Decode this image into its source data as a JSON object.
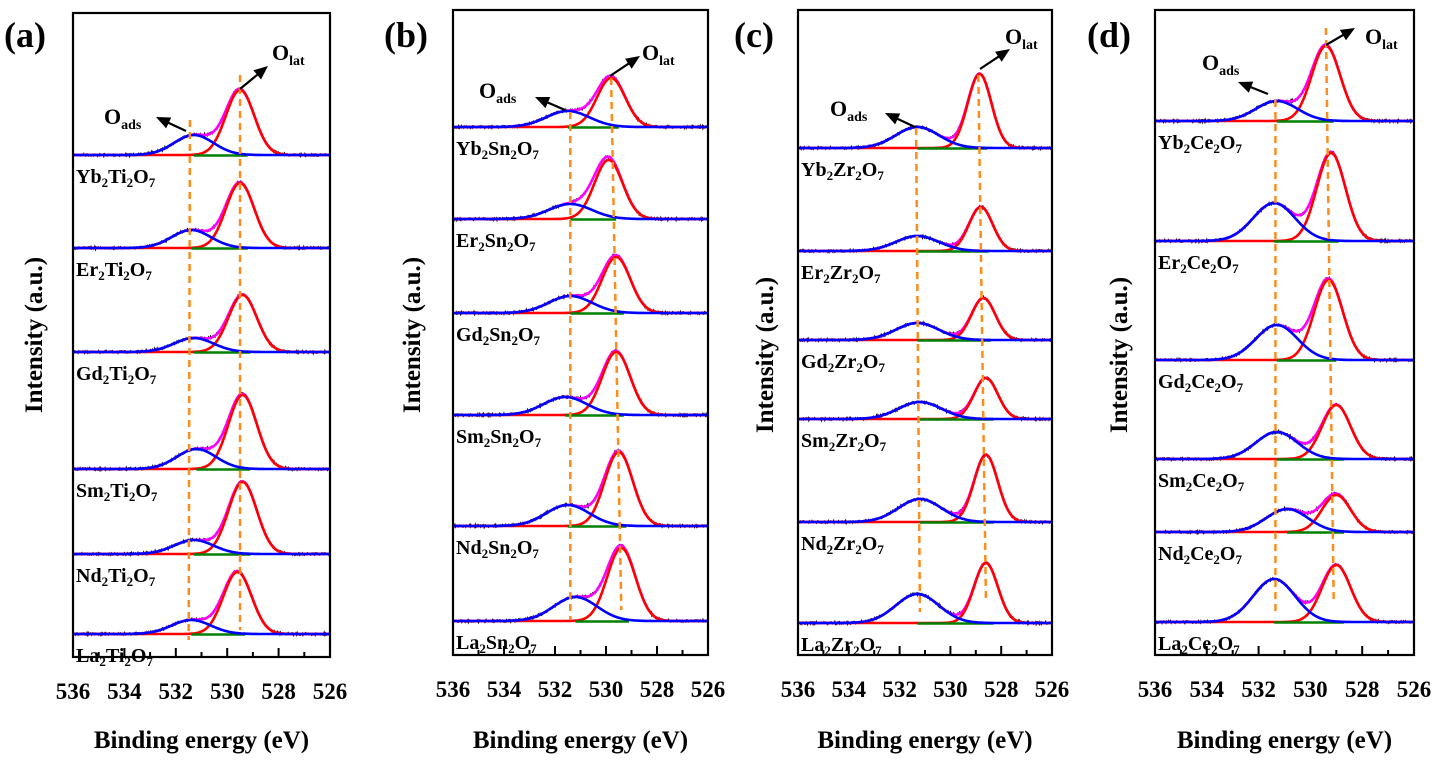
{
  "colors": {
    "data": "#000000",
    "envelope": "#ff00ff",
    "olat_fit": "#ff0000",
    "oads_fit": "#0000ff",
    "background": "#008000",
    "guide_line": "#ff8c1a",
    "axis": "#000000"
  },
  "chart_data": [
    {
      "panel_label": "(a)",
      "type": "line",
      "xlabel": "Binding energy (eV)",
      "ylabel": "Intensity (a.u.)",
      "xlim": [
        536,
        526
      ],
      "x_reversed": true,
      "xticks": [
        536,
        534,
        532,
        530,
        528,
        526
      ],
      "annotations": {
        "olat": [
          "O",
          "lat"
        ],
        "oads": [
          "O",
          "ads"
        ]
      },
      "guide_lines": {
        "oads": [
          531.45,
          531.5
        ],
        "olat": [
          529.5,
          529.5
        ]
      },
      "fwhm": {
        "olat": 1.3,
        "oads": 1.8
      },
      "samples": [
        {
          "label": [
            "Yb",
            "2",
            "Ti",
            "2",
            "O",
            "7"
          ],
          "olat": {
            "center": 529.5,
            "height": 65
          },
          "oads": {
            "center": 531.3,
            "height": 20
          }
        },
        {
          "label": [
            "Er",
            "2",
            "Ti",
            "2",
            "O",
            "7"
          ],
          "olat": {
            "center": 529.5,
            "height": 65
          },
          "oads": {
            "center": 531.4,
            "height": 18
          }
        },
        {
          "label": [
            "Gd",
            "2",
            "Ti",
            "2",
            "O",
            "7"
          ],
          "olat": {
            "center": 529.4,
            "height": 57
          },
          "oads": {
            "center": 531.3,
            "height": 14
          }
        },
        {
          "label": [
            "Sm",
            "2",
            "Ti",
            "2",
            "O",
            "7"
          ],
          "olat": {
            "center": 529.4,
            "height": 74
          },
          "oads": {
            "center": 531.2,
            "height": 20
          }
        },
        {
          "label": [
            "Nd",
            "2",
            "Ti",
            "2",
            "O",
            "7"
          ],
          "olat": {
            "center": 529.4,
            "height": 72
          },
          "oads": {
            "center": 531.3,
            "height": 14
          }
        },
        {
          "label": [
            "La",
            "2",
            "Ti",
            "2",
            "O",
            "7"
          ],
          "olat": {
            "center": 529.6,
            "height": 62
          },
          "oads": {
            "center": 531.4,
            "height": 14
          }
        }
      ]
    },
    {
      "panel_label": "(b)",
      "type": "line",
      "xlabel": "Binding energy (eV)",
      "ylabel": "Intensity (a.u.)",
      "xlim": [
        536,
        526
      ],
      "x_reversed": true,
      "xticks": [
        536,
        534,
        532,
        530,
        528,
        526
      ],
      "annotations": {
        "olat": [
          "O",
          "lat"
        ],
        "oads": [
          "O",
          "ads"
        ]
      },
      "guide_lines": {
        "oads": [
          531.4,
          531.4
        ],
        "olat": [
          529.8,
          529.4
        ]
      },
      "fwhm": {
        "olat": 1.3,
        "oads": 2.0
      },
      "samples": [
        {
          "label": [
            "Yb",
            "2",
            "Sn",
            "2",
            "O",
            "7"
          ],
          "olat": {
            "center": 529.8,
            "height": 49
          },
          "oads": {
            "center": 531.5,
            "height": 16
          }
        },
        {
          "label": [
            "Er",
            "2",
            "Sn",
            "2",
            "O",
            "7"
          ],
          "olat": {
            "center": 529.9,
            "height": 59
          },
          "oads": {
            "center": 531.4,
            "height": 15
          }
        },
        {
          "label": [
            "Gd",
            "2",
            "Sn",
            "2",
            "O",
            "7"
          ],
          "olat": {
            "center": 529.6,
            "height": 56
          },
          "oads": {
            "center": 531.4,
            "height": 17
          }
        },
        {
          "label": [
            "Sm",
            "2",
            "Sn",
            "2",
            "O",
            "7"
          ],
          "olat": {
            "center": 529.6,
            "height": 63
          },
          "oads": {
            "center": 531.6,
            "height": 18
          }
        },
        {
          "label": [
            "Nd",
            "2",
            "Sn",
            "2",
            "O",
            "7"
          ],
          "olat": {
            "center": 529.5,
            "height": 74
          },
          "oads": {
            "center": 531.5,
            "height": 21
          }
        },
        {
          "label": [
            "La",
            "2",
            "Sn",
            "2",
            "O",
            "7"
          ],
          "olat": {
            "center": 529.4,
            "height": 73
          },
          "oads": {
            "center": 531.2,
            "height": 24
          }
        }
      ]
    },
    {
      "panel_label": "(c)",
      "type": "line",
      "xlabel": "Binding energy (eV)",
      "ylabel": "Intensity (a.u.)",
      "xlim": [
        536,
        526
      ],
      "x_reversed": true,
      "xticks": [
        536,
        534,
        532,
        530,
        528,
        526
      ],
      "annotations": {
        "olat": [
          "O",
          "lat"
        ],
        "oads": [
          "O",
          "ads"
        ]
      },
      "guide_lines": {
        "oads": [
          531.35,
          531.2
        ],
        "olat": [
          528.9,
          528.6
        ]
      },
      "fwhm": {
        "olat": 1.1,
        "oads": 2.0
      },
      "samples": [
        {
          "label": [
            "Yb",
            "2",
            "Zr",
            "2",
            "O",
            "7"
          ],
          "olat": {
            "center": 528.85,
            "height": 74
          },
          "oads": {
            "center": 531.3,
            "height": 21
          }
        },
        {
          "label": [
            "Er",
            "2",
            "Zr",
            "2",
            "O",
            "7"
          ],
          "olat": {
            "center": 528.8,
            "height": 44
          },
          "oads": {
            "center": 531.3,
            "height": 15
          }
        },
        {
          "label": [
            "Gd",
            "2",
            "Zr",
            "2",
            "O",
            "7"
          ],
          "olat": {
            "center": 528.7,
            "height": 42
          },
          "oads": {
            "center": 531.3,
            "height": 17
          }
        },
        {
          "label": [
            "Sm",
            "2",
            "Zr",
            "2",
            "O",
            "7"
          ],
          "olat": {
            "center": 528.6,
            "height": 41
          },
          "oads": {
            "center": 531.2,
            "height": 17
          }
        },
        {
          "label": [
            "Nd",
            "2",
            "Zr",
            "2",
            "O",
            "7"
          ],
          "olat": {
            "center": 528.6,
            "height": 67
          },
          "oads": {
            "center": 531.2,
            "height": 23
          }
        },
        {
          "label": [
            "La",
            "2",
            "Zr",
            "2",
            "O",
            "7"
          ],
          "olat": {
            "center": 528.6,
            "height": 60
          },
          "oads": {
            "center": 531.3,
            "height": 29
          }
        }
      ]
    },
    {
      "panel_label": "(d)",
      "type": "line",
      "xlabel": "Binding energy (eV)",
      "ylabel": "Intensity (a.u.)",
      "xlim": [
        536,
        526
      ],
      "x_reversed": true,
      "xticks": [
        536,
        534,
        532,
        530,
        528,
        526
      ],
      "annotations": {
        "olat": [
          "O",
          "lat"
        ],
        "oads": [
          "O",
          "ads"
        ]
      },
      "guide_lines": {
        "oads": [
          531.35,
          531.35
        ],
        "olat": [
          529.4,
          529.1
        ]
      },
      "fwhm": {
        "olat": 1.3,
        "oads": 1.9
      },
      "samples": [
        {
          "label": [
            "Yb",
            "2",
            "Ce",
            "2",
            "O",
            "7"
          ],
          "olat": {
            "center": 529.4,
            "height": 75
          },
          "oads": {
            "center": 531.3,
            "height": 20
          }
        },
        {
          "label": [
            "Er",
            "2",
            "Ce",
            "2",
            "O",
            "7"
          ],
          "olat": {
            "center": 529.2,
            "height": 88
          },
          "oads": {
            "center": 531.4,
            "height": 38
          }
        },
        {
          "label": [
            "Gd",
            "2",
            "Ce",
            "2",
            "O",
            "7"
          ],
          "olat": {
            "center": 529.3,
            "height": 80
          },
          "oads": {
            "center": 531.3,
            "height": 35
          }
        },
        {
          "label": [
            "Sm",
            "2",
            "Ce",
            "2",
            "O",
            "7"
          ],
          "olat": {
            "center": 529.0,
            "height": 54
          },
          "oads": {
            "center": 531.3,
            "height": 27
          }
        },
        {
          "label": [
            "Nd",
            "2",
            "Ce",
            "2",
            "O",
            "7"
          ],
          "olat": {
            "center": 529.0,
            "height": 37
          },
          "oads": {
            "center": 530.9,
            "height": 23
          }
        },
        {
          "label": [
            "La",
            "2",
            "Ce",
            "2",
            "O",
            "7"
          ],
          "olat": {
            "center": 529.0,
            "height": 57
          },
          "oads": {
            "center": 531.4,
            "height": 43
          }
        }
      ]
    }
  ]
}
